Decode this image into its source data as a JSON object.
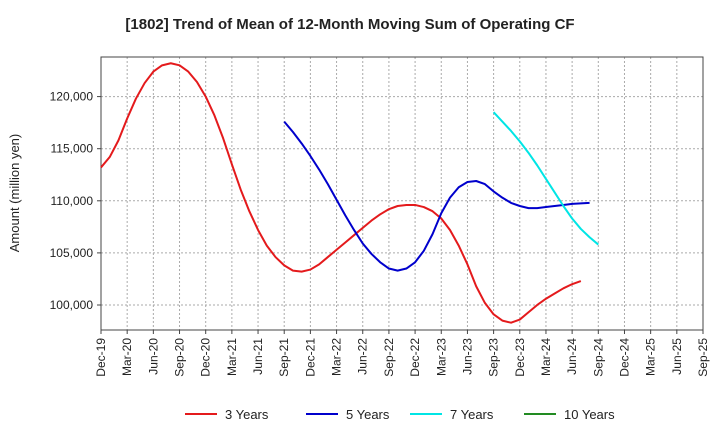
{
  "chart_data": {
    "type": "line",
    "title": "[1802]  Trend of Mean of 12-Month Moving Sum of Operating CF",
    "xlabel": "",
    "ylabel": "Amount (million yen)",
    "ylim": [
      97600,
      123800
    ],
    "yticks": [
      100000,
      105000,
      110000,
      115000,
      120000
    ],
    "ytick_labels": [
      "100,000",
      "105,000",
      "110,000",
      "115,000",
      "120,000"
    ],
    "x_range": [
      0,
      69
    ],
    "xticks": [
      0,
      3,
      6,
      9,
      12,
      15,
      18,
      21,
      24,
      27,
      30,
      33,
      36,
      39,
      42,
      45,
      48,
      51,
      54,
      57,
      60,
      63,
      66,
      69
    ],
    "xtick_labels": [
      "Dec-19",
      "Mar-20",
      "Jun-20",
      "Sep-20",
      "Dec-20",
      "Mar-21",
      "Jun-21",
      "Sep-21",
      "Dec-21",
      "Mar-22",
      "Jun-22",
      "Sep-22",
      "Dec-22",
      "Mar-23",
      "Jun-23",
      "Sep-23",
      "Dec-23",
      "Mar-24",
      "Jun-24",
      "Sep-24",
      "Dec-24",
      "Mar-25",
      "Jun-25",
      "Sep-25"
    ],
    "grid": true,
    "legend_position": "bottom",
    "series": [
      {
        "name": "3 Years",
        "color": "#e41a1c",
        "x_start": 0,
        "values": [
          113200,
          114200,
          115800,
          117900,
          119800,
          121300,
          122400,
          123000,
          123200,
          123000,
          122400,
          121400,
          120000,
          118200,
          116000,
          113500,
          111100,
          109000,
          107200,
          105700,
          104600,
          103800,
          103300,
          103200,
          103400,
          103900,
          104600,
          105300,
          106000,
          106700,
          107400,
          108100,
          108700,
          109200,
          109500,
          109600,
          109600,
          109400,
          109000,
          108300,
          107200,
          105700,
          103900,
          101800,
          100200,
          99100,
          98500,
          98300,
          98600,
          99300,
          100000,
          100600,
          101100,
          101600,
          102000,
          102300
        ]
      },
      {
        "name": "5 Years",
        "color": "#0000cc",
        "x_start": 21,
        "values": [
          117600,
          116600,
          115500,
          114300,
          113000,
          111600,
          110100,
          108600,
          107200,
          105900,
          104900,
          104100,
          103500,
          103300,
          103500,
          104100,
          105200,
          106800,
          108800,
          110300,
          111300,
          111800,
          111900,
          111600,
          110900,
          110300,
          109800,
          109500,
          109300,
          109300,
          109400,
          109500,
          109600,
          109700,
          109750,
          109800
        ]
      },
      {
        "name": "7 Years",
        "color": "#00e5e5",
        "x_start": 45,
        "values": [
          118500,
          117600,
          116700,
          115700,
          114600,
          113400,
          112100,
          110800,
          109500,
          108300,
          107300,
          106500,
          105800
        ]
      },
      {
        "name": "10 Years",
        "color": "#228b22",
        "x_start": 0,
        "values": []
      }
    ]
  }
}
